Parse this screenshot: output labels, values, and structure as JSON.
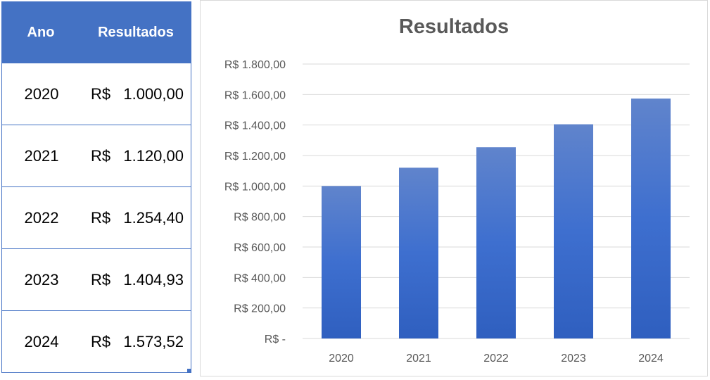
{
  "table": {
    "headers": [
      "Ano",
      "Resultados"
    ],
    "currency_symbol": "R$",
    "rows": [
      {
        "year": "2020",
        "value": "1.000,00"
      },
      {
        "year": "2021",
        "value": "1.120,00"
      },
      {
        "year": "2022",
        "value": "1.254,40"
      },
      {
        "year": "2023",
        "value": "1.404,93"
      },
      {
        "year": "2024",
        "value": "1.573,52"
      }
    ]
  },
  "chart_data": {
    "type": "bar",
    "title": "Resultados",
    "categories": [
      "2020",
      "2021",
      "2022",
      "2023",
      "2024"
    ],
    "values": [
      1000.0,
      1120.0,
      1254.4,
      1404.93,
      1573.52
    ],
    "ylim": [
      0,
      1800
    ],
    "ytick_labels": [
      "R$ -",
      "R$ 200,00",
      "R$ 400,00",
      "R$ 600,00",
      "R$ 800,00",
      "R$ 1.000,00",
      "R$ 1.200,00",
      "R$ 1.400,00",
      "R$ 1.600,00",
      "R$ 1.800,00"
    ],
    "ytick_values": [
      0,
      200,
      400,
      600,
      800,
      1000,
      1200,
      1400,
      1600,
      1800
    ],
    "grid": true,
    "legend": "none",
    "bar_color": "#4472c4"
  }
}
